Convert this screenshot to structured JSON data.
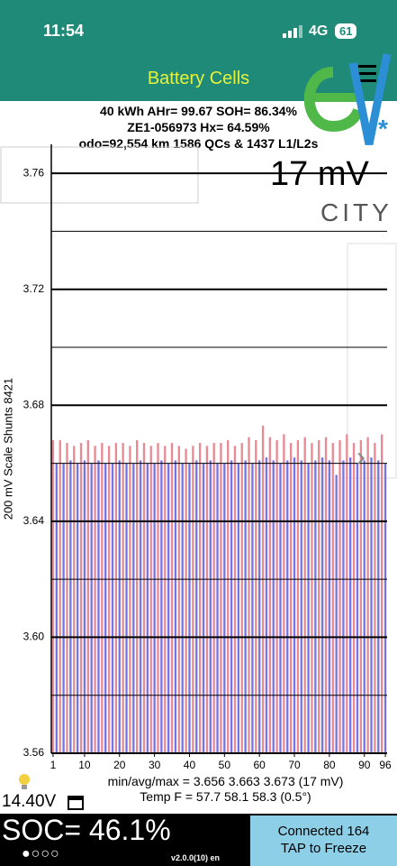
{
  "status": {
    "time": "11:54",
    "network": "4G",
    "battery": "61"
  },
  "header": {
    "title": "Battery Cells"
  },
  "info": {
    "line1": "40 kWh  AHr= 99.67  SOH= 86.34%",
    "line2": "ZE1-056973   Hx= 64.59%",
    "line3": "odo=92,554 km 1586 QCs & 1437 L1/L2s"
  },
  "logo": {
    "text": "CITY"
  },
  "spread": "17 mV",
  "chart_data": {
    "type": "bar",
    "y_label": "200 mV Scale   Shunts 8421",
    "x": [
      1,
      2,
      3,
      4,
      5,
      6,
      7,
      8,
      9,
      10,
      11,
      12,
      13,
      14,
      15,
      16,
      17,
      18,
      19,
      20,
      21,
      22,
      23,
      24,
      25,
      26,
      27,
      28,
      29,
      30,
      31,
      32,
      33,
      34,
      35,
      36,
      37,
      38,
      39,
      40,
      41,
      42,
      43,
      44,
      45,
      46,
      47,
      48,
      49,
      50,
      51,
      52,
      53,
      54,
      55,
      56,
      57,
      58,
      59,
      60,
      61,
      62,
      63,
      64,
      65,
      66,
      67,
      68,
      69,
      70,
      71,
      72,
      73,
      74,
      75,
      76,
      77,
      78,
      79,
      80,
      81,
      82,
      83,
      84,
      85,
      86,
      87,
      88,
      89,
      90,
      91,
      92,
      93,
      94,
      95,
      96
    ],
    "values": [
      3.668,
      3.66,
      3.668,
      3.66,
      3.667,
      3.661,
      3.666,
      3.66,
      3.667,
      3.661,
      3.668,
      3.66,
      3.666,
      3.661,
      3.667,
      3.66,
      3.666,
      3.66,
      3.667,
      3.661,
      3.667,
      3.66,
      3.666,
      3.66,
      3.668,
      3.661,
      3.667,
      3.66,
      3.666,
      3.66,
      3.667,
      3.661,
      3.666,
      3.66,
      3.667,
      3.661,
      3.666,
      3.66,
      3.665,
      3.66,
      3.666,
      3.661,
      3.667,
      3.66,
      3.666,
      3.661,
      3.667,
      3.66,
      3.667,
      3.66,
      3.668,
      3.661,
      3.666,
      3.66,
      3.667,
      3.661,
      3.669,
      3.66,
      3.668,
      3.661,
      3.673,
      3.662,
      3.669,
      3.661,
      3.668,
      3.66,
      3.67,
      3.661,
      3.667,
      3.662,
      3.668,
      3.661,
      3.669,
      3.66,
      3.667,
      3.661,
      3.668,
      3.662,
      3.669,
      3.661,
      3.667,
      3.656,
      3.668,
      3.661,
      3.67,
      3.662,
      3.667,
      3.66,
      3.668,
      3.661,
      3.669,
      3.662,
      3.667,
      3.661,
      3.67,
      3.66
    ],
    "bar_colors": [
      "#e88a94",
      "#7474e6"
    ],
    "xlim": [
      0.5,
      96.5
    ],
    "xticks": [
      1,
      10,
      20,
      30,
      40,
      50,
      60,
      70,
      80,
      90,
      96
    ],
    "ylim": [
      3.56,
      3.77
    ],
    "yticks": [
      3.56,
      {
        "value": 3.6,
        "label": "3.60"
      },
      3.64,
      3.68,
      3.72,
      3.76
    ],
    "minor_yticks": [
      3.58,
      3.62,
      3.66,
      3.7,
      3.74
    ],
    "grid": true
  },
  "stats": {
    "minavgmax": "min/avg/max = 3.656 3.663 3.673  (17 mV)",
    "temp": "Temp F = 57.7  58.1  58.3  (0.5°)"
  },
  "footer": {
    "voltage": "14.40V",
    "soc": "SOC= 46.1%",
    "version": "v2.0.0(10) en",
    "connected": "Connected 164",
    "tap": "TAP to Freeze"
  }
}
